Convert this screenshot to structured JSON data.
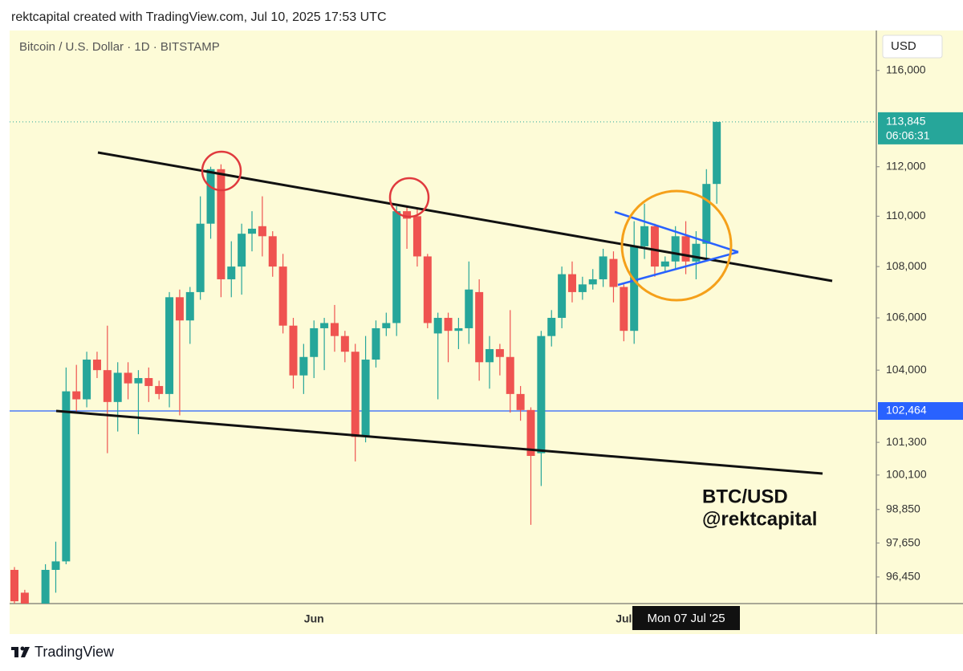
{
  "header": "rektcapital created with TradingView.com, Jul 10, 2025 17:53 UTC",
  "footer": "TradingView",
  "chart_data": {
    "type": "candlestick",
    "title": "Bitcoin / U.S. Dollar · 1D · BITSTAMP",
    "y_axis_label": "USD",
    "log_scale": true,
    "grid": false,
    "up_color": "#26a69a",
    "down_color": "#ef5350",
    "categories": [
      null,
      null,
      null,
      null,
      null,
      null,
      null,
      null,
      null,
      null,
      null,
      null,
      null,
      null,
      null,
      null,
      null,
      null,
      null,
      null,
      null,
      null,
      null,
      null,
      null,
      null,
      null,
      null,
      null,
      "Jun",
      null,
      null,
      null,
      null,
      null,
      null,
      null,
      null,
      null,
      null,
      null,
      null,
      null,
      null,
      null,
      null,
      null,
      null,
      null,
      null,
      null,
      null,
      null,
      null,
      null,
      null,
      null,
      null,
      null,
      "Jul",
      null,
      null,
      null,
      null,
      null,
      null,
      null,
      null,
      null
    ],
    "open": [
      96700,
      95900,
      94300,
      94700,
      96700,
      97000,
      103200,
      102900,
      104400,
      104000,
      102800,
      103900,
      103500,
      103700,
      103400,
      103100,
      106800,
      105900,
      107000,
      109700,
      111900,
      107500,
      108000,
      109300,
      109600,
      109200,
      108000,
      105700,
      103800,
      104500,
      105600,
      105800,
      105300,
      104700,
      101500,
      104400,
      105600,
      105800,
      110200,
      110000,
      108400,
      105400,
      106000,
      105500,
      105600,
      107000,
      104300,
      104800,
      104500,
      103100,
      102500,
      100900,
      105300,
      106000,
      107700,
      107000,
      107300,
      107500,
      108300,
      107200,
      105500,
      108800,
      109600,
      108000,
      108200,
      109200,
      108200,
      108900,
      111300
    ],
    "high": [
      96800,
      96000,
      95200,
      96900,
      97700,
      104100,
      104200,
      104700,
      104700,
      105700,
      104300,
      104300,
      104000,
      104100,
      103600,
      107000,
      107100,
      107200,
      110800,
      112000,
      112100,
      109000,
      109700,
      110200,
      110800,
      109400,
      108500,
      106000,
      105000,
      105900,
      106000,
      106500,
      105500,
      105000,
      105300,
      105900,
      106200,
      110400,
      110400,
      110300,
      108500,
      106200,
      106200,
      106000,
      108200,
      107500,
      105300,
      105000,
      106300,
      103400,
      102600,
      105500,
      106300,
      108000,
      108200,
      107600,
      107900,
      108700,
      108600,
      107300,
      109800,
      110500,
      109700,
      108400,
      109600,
      109800,
      109400,
      111900,
      113850
    ],
    "low": [
      95300,
      94200,
      93500,
      93400,
      95900,
      96900,
      102400,
      102600,
      103700,
      100900,
      101700,
      102900,
      101600,
      102800,
      102900,
      102600,
      102300,
      105000,
      106700,
      109100,
      106800,
      106800,
      106900,
      108600,
      108400,
      107600,
      105400,
      103300,
      103100,
      103700,
      104000,
      104700,
      104300,
      100600,
      101300,
      104100,
      105300,
      105300,
      108700,
      108000,
      105600,
      102900,
      104300,
      104800,
      105000,
      103600,
      103300,
      103800,
      102400,
      102100,
      98300,
      99700,
      104900,
      105600,
      106600,
      106700,
      107100,
      107200,
      106600,
      105100,
      105000,
      108300,
      107600,
      107800,
      107900,
      107700,
      107500,
      108300,
      110500
    ],
    "close": [
      95600,
      94600,
      94700,
      96700,
      97000,
      103200,
      102900,
      104400,
      104000,
      102800,
      103900,
      103500,
      103700,
      103400,
      103100,
      106800,
      105900,
      107000,
      109700,
      111900,
      107500,
      108000,
      109300,
      109500,
      109200,
      108000,
      105700,
      103800,
      104500,
      105600,
      105800,
      105300,
      104700,
      101500,
      104400,
      105600,
      105800,
      110200,
      109900,
      108400,
      105800,
      106000,
      105500,
      105600,
      107100,
      104300,
      104800,
      104500,
      103100,
      102500,
      100800,
      105300,
      106000,
      107700,
      107000,
      107300,
      107500,
      108400,
      107200,
      105500,
      108800,
      109600,
      108000,
      108200,
      109200,
      108200,
      108900,
      111300,
      113845
    ],
    "ylim": [
      95520,
      117700
    ],
    "yticks": [
      {
        "value": 96450,
        "label": "96,450"
      },
      {
        "value": 97650,
        "label": "97,650"
      },
      {
        "value": 98850,
        "label": "98,850"
      },
      {
        "value": 100100,
        "label": "100,100"
      },
      {
        "value": 101300,
        "label": "101,300"
      },
      {
        "value": 104000,
        "label": "104,000"
      },
      {
        "value": 106000,
        "label": "106,000"
      },
      {
        "value": 108000,
        "label": "108,000"
      },
      {
        "value": 110000,
        "label": "110,000"
      },
      {
        "value": 112000,
        "label": "112,000"
      },
      {
        "value": 116000,
        "label": "116,000"
      }
    ],
    "price_line": {
      "value": 113845,
      "label": "113,845",
      "countdown": "06:06:31",
      "color": "#26a69a"
    },
    "horizontal_line": {
      "value": 102464,
      "label": "102,464",
      "color": "#2962ff"
    },
    "crosshair_label": "Mon 07 Jul '25",
    "watermark": [
      "BTC/USD",
      "@rektcapital"
    ]
  }
}
